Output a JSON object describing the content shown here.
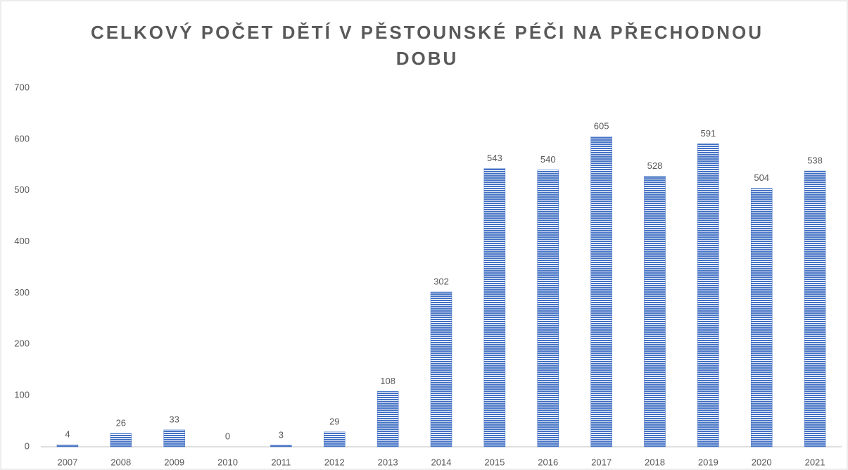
{
  "chart_data": {
    "type": "bar",
    "title": "CELKOVÝ POČET DĚTÍ V PĚSTOUNSKÉ PÉČI NA PŘECHODNOU DOBU",
    "categories": [
      "2007",
      "2008",
      "2009",
      "2010",
      "2011",
      "2012",
      "2013",
      "2014",
      "2015",
      "2016",
      "2017",
      "2018",
      "2019",
      "2020",
      "2021"
    ],
    "values": [
      4,
      26,
      33,
      0,
      3,
      29,
      108,
      302,
      543,
      540,
      605,
      528,
      591,
      504,
      538
    ],
    "color": "#4472c4",
    "ylim": [
      0,
      700
    ],
    "yticks": [
      0,
      100,
      200,
      300,
      400,
      500,
      600,
      700
    ],
    "grid": false
  }
}
